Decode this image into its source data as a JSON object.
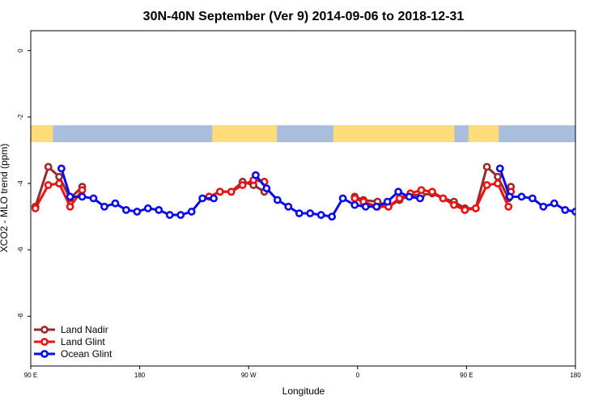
{
  "chart_data": {
    "type": "line",
    "title": "30N-40N September (Ver 9)   2014-09-06 to 2018-12-31",
    "xlabel": "Longitude",
    "ylabel": "XCO2 - MLO trend (ppm)",
    "xlim": [
      -90,
      180
    ],
    "x_domain_note": "longitude unwrapped; 90 E at left edge through 180, 90 W, 0, 90 E to 180",
    "ylim": [
      -9.5,
      0.6
    ],
    "x_ticks": [
      {
        "value": -90,
        "label": "90 E"
      },
      {
        "value": -36,
        "label": "180"
      },
      {
        "value": 18,
        "label": "90 W"
      },
      {
        "value": 72,
        "label": "0"
      },
      {
        "value": 126,
        "label": "90 E"
      },
      {
        "value": 180,
        "label": "180"
      }
    ],
    "y_ticks": [
      {
        "value": 0,
        "label": "0"
      },
      {
        "value": -2,
        "label": "-2"
      },
      {
        "value": -4,
        "label": "-4"
      },
      {
        "value": -6,
        "label": "-6"
      },
      {
        "value": -8,
        "label": "-8"
      }
    ],
    "map_band": {
      "y_top": -2.25,
      "y_bottom": -2.8,
      "land_color": "#fedc7a",
      "ocean_color": "#a9bedd"
    },
    "legend": {
      "position": "bottom-left"
    },
    "series": [
      {
        "name": "Land Nadir",
        "color": "#9a2a2a",
        "segments": [
          {
            "x": [
              -87.7,
              -81.3,
              -75.9,
              -70.5,
              -64.5
            ],
            "y": [
              -4.7,
              -3.5,
              -3.8,
              -4.45,
              -4.1
            ]
          },
          {
            "x": [
              -1.6,
              3.8,
              9.4,
              15.0,
              20.4,
              25.8
            ],
            "y": [
              -4.4,
              -4.25,
              -4.25,
              -3.95,
              -4.05,
              -4.25
            ]
          },
          {
            "x": [
              70.6,
              74.9,
              81.9,
              87.3,
              92.8,
              98.2,
              103.6,
              109.0,
              114.4,
              119.8,
              125.2,
              130.6,
              136.1,
              141.5,
              146.8
            ],
            "y": [
              -4.4,
              -4.5,
              -4.55,
              -4.7,
              -4.5,
              -4.35,
              -4.35,
              -4.3,
              -4.45,
              -4.55,
              -4.75,
              -4.75,
              -3.5,
              -3.8,
              -4.45
            ]
          },
          {
            "x": [
              148.0
            ],
            "y": [
              -4.1
            ]
          }
        ]
      },
      {
        "name": "Land Glint",
        "color": "#ee1111",
        "segments": [
          {
            "x": [
              -87.7,
              -81.3,
              -75.9,
              -70.5,
              -64.5
            ],
            "y": [
              -4.75,
              -4.05,
              -4.0,
              -4.7,
              -4.2
            ]
          },
          {
            "x": [
              -1.6,
              3.8,
              9.4,
              15.0,
              20.4,
              25.8
            ],
            "y": [
              -4.4,
              -4.25,
              -4.25,
              -4.05,
              -3.9,
              -3.95
            ]
          },
          {
            "x": [
              70.6,
              74.9,
              81.9,
              87.3,
              92.8,
              98.2,
              103.6,
              109.0,
              114.4,
              119.8,
              125.2,
              130.6,
              136.1,
              141.5,
              146.8
            ],
            "y": [
              -4.45,
              -4.55,
              -4.7,
              -4.7,
              -4.45,
              -4.3,
              -4.2,
              -4.25,
              -4.45,
              -4.65,
              -4.8,
              -4.75,
              -4.05,
              -4.0,
              -4.7
            ]
          },
          {
            "x": [
              148.0
            ],
            "y": [
              -4.25
            ]
          }
        ]
      },
      {
        "name": "Ocean Glint",
        "color": "#0a0aee",
        "segments": [
          {
            "x": [
              -74.8,
              -70.5,
              -64.5,
              -58.9,
              -53.5,
              -48.1,
              -42.7,
              -37.3,
              -31.9,
              -26.5,
              -21.1,
              -15.7,
              -10.3,
              -4.9,
              0.7
            ],
            "y": [
              -3.55,
              -4.4,
              -4.4,
              -4.45,
              -4.7,
              -4.6,
              -4.8,
              -4.85,
              -4.75,
              -4.8,
              -4.95,
              -4.95,
              -4.85,
              -4.45,
              -4.45
            ]
          },
          {
            "x": [
              21.5,
              26.9,
              32.3,
              37.7,
              43.1,
              48.5,
              53.9,
              59.3,
              64.7,
              70.6,
              76.0,
              81.4,
              86.8,
              92.2,
              97.6,
              103.0
            ],
            "y": [
              -3.75,
              -4.15,
              -4.5,
              -4.7,
              -4.9,
              -4.9,
              -4.95,
              -5.0,
              -4.45,
              -4.65,
              -4.7,
              -4.7,
              -4.55,
              -4.25,
              -4.4,
              -4.45
            ]
          },
          {
            "x": [
              142.6,
              147.4,
              153.3,
              158.7,
              164.1,
              169.5,
              174.9,
              180.0
            ],
            "y": [
              -3.55,
              -4.4,
              -4.4,
              -4.45,
              -4.7,
              -4.6,
              -4.8,
              -4.85
            ]
          }
        ]
      }
    ]
  }
}
